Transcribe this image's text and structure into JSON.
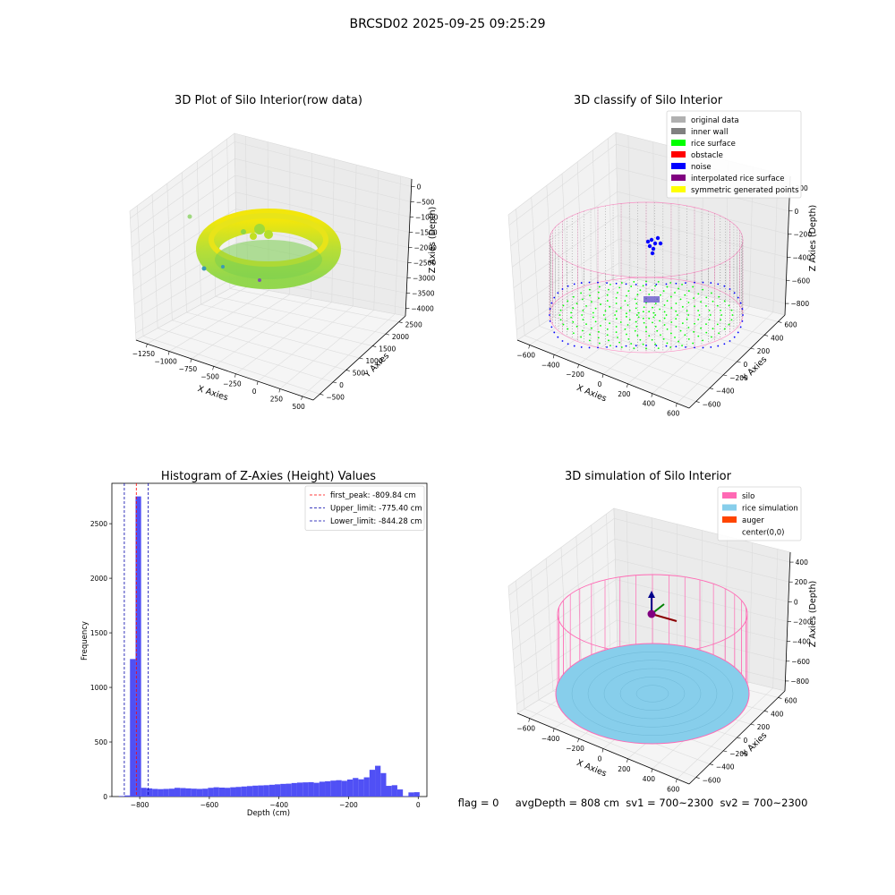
{
  "suptitle": "BRCSD02 2025-09-25 09:25:29",
  "colors": {
    "original": "#b0b0b0",
    "inner_wall": "#808080",
    "rice_surface": "#00ff00",
    "obstacle": "#ff0000",
    "noise": "#0000ff",
    "interp": "#800080",
    "symmetric": "#ffff00",
    "silo": "#ff69b4",
    "rice_sim": "#87ceeb",
    "auger": "#ff4500",
    "hist_bar": "#5050f5"
  },
  "panel1": {
    "title": "3D Plot of Silo Interior(row data)",
    "xlabel": "X Axies",
    "ylabel": "Y Axies",
    "zlabel": "Z Axies (Depth)",
    "xticks": [
      "−1250",
      "−1000",
      "−750",
      "−500",
      "−250",
      "0",
      "250",
      "500"
    ],
    "yticks": [
      "−500",
      "0",
      "500",
      "1000",
      "1500",
      "2000",
      "2500"
    ],
    "zticks": [
      "0",
      "−500",
      "−1000",
      "−1500",
      "−2000",
      "−2500",
      "−3000",
      "−3500",
      "−4000"
    ]
  },
  "panel2": {
    "title": "3D classify of Silo Interior",
    "xlabel": "X Axies",
    "ylabel": "Y Axies",
    "zlabel": "Z Axies (Depth)",
    "xticks": [
      "−600",
      "−400",
      "−200",
      "0",
      "200",
      "400",
      "600"
    ],
    "yticks": [
      "−600",
      "−400",
      "−200",
      "0",
      "200",
      "400",
      "600"
    ],
    "zticks": [
      "200",
      "0",
      "−200",
      "−400",
      "−600",
      "−800"
    ],
    "legend": [
      {
        "label": "original data",
        "color_key": "original"
      },
      {
        "label": "inner wall",
        "color_key": "inner_wall"
      },
      {
        "label": "rice surface",
        "color_key": "rice_surface"
      },
      {
        "label": "obstacle",
        "color_key": "obstacle"
      },
      {
        "label": "noise",
        "color_key": "noise"
      },
      {
        "label": "interpolated rice surface",
        "color_key": "interp"
      },
      {
        "label": "symmetric generated points",
        "color_key": "symmetric"
      }
    ]
  },
  "panel4": {
    "title": "3D simulation of Silo Interior",
    "xlabel": "X Axies",
    "ylabel": "Y Axies",
    "zlabel": "Z Axies (Depth)",
    "xticks": [
      "−600",
      "−400",
      "−200",
      "0",
      "200",
      "400",
      "600"
    ],
    "yticks": [
      "−600",
      "−400",
      "−200",
      "0",
      "200",
      "400",
      "600"
    ],
    "zticks": [
      "400",
      "200",
      "0",
      "−200",
      "−400",
      "−600",
      "−800"
    ],
    "legend": [
      {
        "label": "silo",
        "color_key": "silo"
      },
      {
        "label": "rice simulation",
        "color_key": "rice_sim"
      },
      {
        "label": "auger",
        "color_key": "auger"
      },
      {
        "label": "center(0,0)",
        "color_key": ""
      }
    ]
  },
  "status_line": "flag = 0     avgDepth = 808 cm  sv1 = 700~2300  sv2 = 700~2300",
  "chart_data": [
    {
      "type": "scatter",
      "title": "3D Plot of Silo Interior(row data)",
      "xlabel": "X Axies",
      "ylabel": "Y Axies",
      "zlabel": "Z Axies (Depth)",
      "xlim": [
        -1300,
        550
      ],
      "ylim": [
        -600,
        2600
      ],
      "zlim": [
        -4200,
        200
      ]
    },
    {
      "type": "scatter",
      "title": "3D classify of Silo Interior",
      "xlabel": "X Axies",
      "ylabel": "Y Axies",
      "zlabel": "Z Axies (Depth)",
      "xlim": [
        -700,
        700
      ],
      "ylim": [
        -700,
        700
      ],
      "zlim": [
        -900,
        250
      ]
    },
    {
      "type": "bar",
      "title": "Histogram of Z-Axies (Height) Values",
      "xlabel": "Depth (cm)",
      "ylabel": "Frequency",
      "xlim": [
        -880,
        25
      ],
      "ylim": [
        0,
        2870
      ],
      "xticks": [
        -800,
        -600,
        -400,
        -200,
        0
      ],
      "yticks": [
        0,
        500,
        1000,
        1500,
        2000,
        2500
      ],
      "bin_edges": [
        -860,
        -844,
        -828,
        -812,
        -796,
        -780,
        -764,
        -748,
        -732,
        -716,
        -700,
        -684,
        -668,
        -652,
        -636,
        -620,
        -604,
        -588,
        -572,
        -556,
        -540,
        -524,
        -508,
        -492,
        -476,
        -460,
        -444,
        -428,
        -412,
        -396,
        -380,
        -364,
        -348,
        -332,
        -316,
        -300,
        -284,
        -268,
        -252,
        -236,
        -220,
        -204,
        -188,
        -172,
        -156,
        -140,
        -124,
        -108,
        -92,
        -76,
        -60,
        -44,
        -28,
        -12,
        4
      ],
      "values": [
        5,
        10,
        1260,
        2750,
        80,
        75,
        70,
        68,
        70,
        72,
        80,
        78,
        75,
        72,
        70,
        72,
        80,
        85,
        82,
        80,
        85,
        88,
        92,
        96,
        100,
        102,
        104,
        108,
        112,
        116,
        118,
        124,
        128,
        130,
        132,
        126,
        136,
        140,
        146,
        150,
        144,
        156,
        170,
        158,
        176,
        245,
        282,
        215,
        98,
        104,
        65,
        5,
        38,
        40
      ],
      "lines": [
        {
          "label": "first_peak: -809.84 cm",
          "x": -809.84,
          "color": "#ff0000"
        },
        {
          "label": "Upper_limit: -775.40 cm",
          "x": -775.4,
          "color": "#0000aa"
        },
        {
          "label": "Lower_limit: -844.28 cm",
          "x": -844.28,
          "color": "#0000aa"
        }
      ]
    },
    {
      "type": "scatter",
      "title": "3D simulation of Silo Interior",
      "xlabel": "X Axies",
      "ylabel": "Y Axies",
      "zlabel": "Z Axies (Depth)",
      "xlim": [
        -700,
        700
      ],
      "ylim": [
        -700,
        700
      ],
      "zlim": [
        -900,
        450
      ]
    }
  ]
}
